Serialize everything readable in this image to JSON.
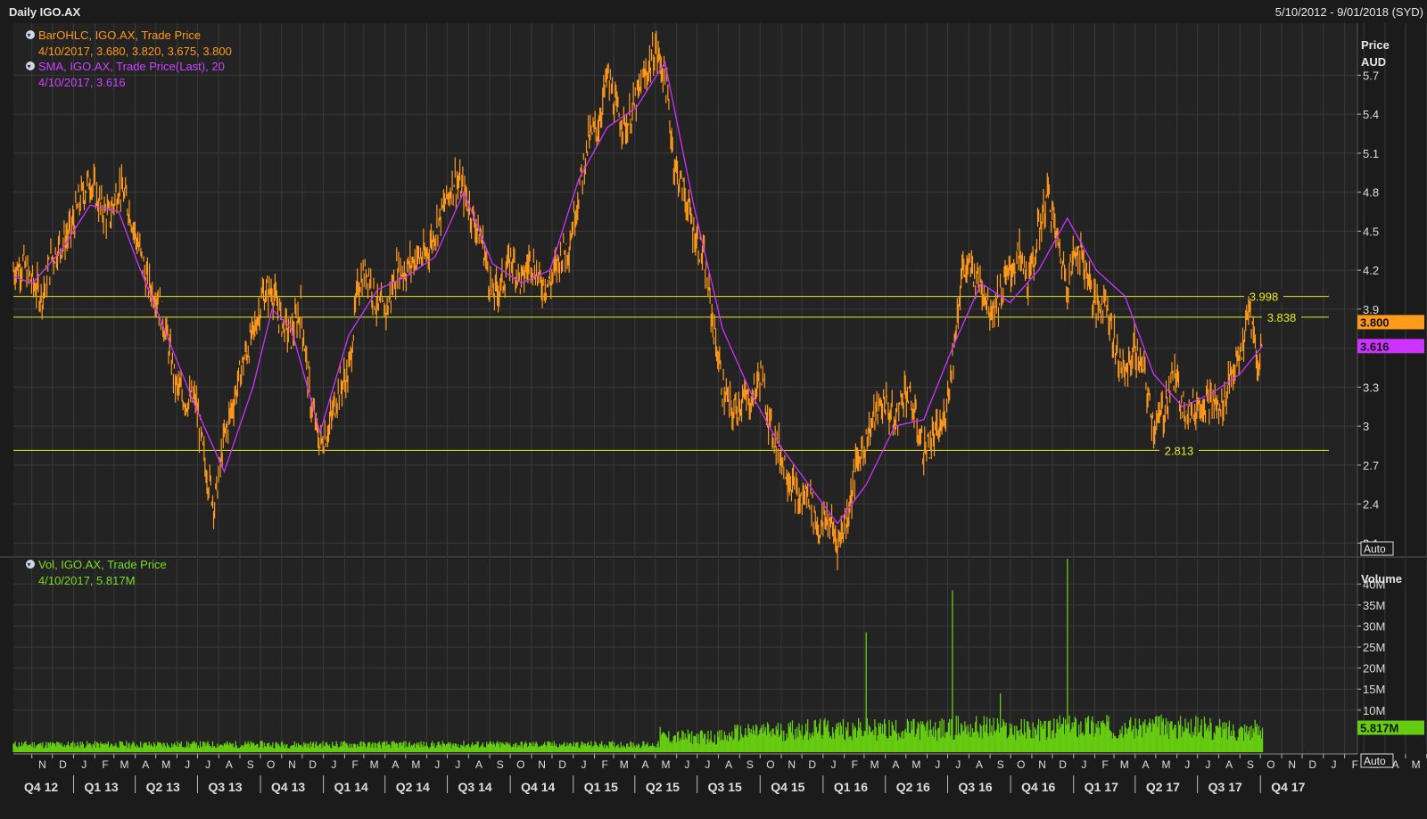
{
  "header": {
    "title": "Daily IGO.AX",
    "date_range": "5/10/2012 - 9/01/2018 (SYD)"
  },
  "price_panel": {
    "legend1_name": "BarOHLC, IGO.AX, Trade Price",
    "legend1_values": "4/10/2017, 3.680, 3.820, 3.675, 3.800",
    "legend2_name": "SMA, IGO.AX, Trade Price(Last),  20",
    "legend2_values": "4/10/2017, 3.616",
    "axis_title_1": "Price",
    "axis_title_2": "AUD",
    "last_price_label": "3.800",
    "sma_label": "3.616",
    "auto_button": "Auto"
  },
  "volume_panel": {
    "legend_name": "Vol, IGO.AX, Trade Price",
    "legend_values": "4/10/2017, 5.817M",
    "axis_title": "Volume",
    "last_volume_label": "5.817M",
    "auto_button": "Auto"
  },
  "colors": {
    "background": "#1b1b1b",
    "plot_bg": "#232323",
    "grid": "#3a3a3a",
    "price": "#ff9a1a",
    "sma": "#cc33ff",
    "volume": "#66cc11",
    "hline": "#e8e820",
    "axis_text": "#dddddd"
  },
  "chart_data": [
    {
      "type": "line",
      "title": "Daily IGO.AX",
      "series": [
        {
          "name": "BarOHLC, IGO.AX, Trade Price",
          "x": [
            "2012-10-05",
            "2012-10-19",
            "2012-11-02",
            "2012-11-16",
            "2012-11-30",
            "2012-12-14",
            "2012-12-28",
            "2013-01-11",
            "2013-01-25",
            "2013-02-08",
            "2013-02-22",
            "2013-03-08",
            "2013-03-22",
            "2013-04-05",
            "2013-04-19",
            "2013-05-03",
            "2013-05-17",
            "2013-05-31",
            "2013-06-14",
            "2013-06-28",
            "2013-07-12",
            "2013-07-26",
            "2013-08-09",
            "2013-08-23",
            "2013-09-06",
            "2013-09-20",
            "2013-10-04",
            "2013-10-18",
            "2013-11-01",
            "2013-11-15",
            "2013-11-29",
            "2013-12-13",
            "2013-12-27",
            "2014-01-10",
            "2014-01-24",
            "2014-02-07",
            "2014-02-21",
            "2014-03-07",
            "2014-03-21",
            "2014-04-04",
            "2014-04-18",
            "2014-05-02",
            "2014-05-16",
            "2014-05-30",
            "2014-06-13",
            "2014-06-27",
            "2014-07-11",
            "2014-07-25",
            "2014-08-08",
            "2014-08-22",
            "2014-09-05",
            "2014-09-19",
            "2014-10-03",
            "2014-10-17",
            "2014-10-31",
            "2014-11-14",
            "2014-11-28",
            "2014-12-12",
            "2014-12-26",
            "2015-01-09",
            "2015-01-23",
            "2015-02-06",
            "2015-02-20",
            "2015-03-06",
            "2015-03-20",
            "2015-04-03",
            "2015-04-17",
            "2015-05-01",
            "2015-05-15",
            "2015-05-29",
            "2015-06-12",
            "2015-06-26",
            "2015-07-10",
            "2015-07-24",
            "2015-08-07",
            "2015-08-21",
            "2015-09-04",
            "2015-09-18",
            "2015-10-02",
            "2015-10-16",
            "2015-10-30",
            "2015-11-13",
            "2015-11-27",
            "2015-12-11",
            "2015-12-25",
            "2016-01-08",
            "2016-01-22",
            "2016-02-05",
            "2016-02-19",
            "2016-03-04",
            "2016-03-18",
            "2016-04-01",
            "2016-04-15",
            "2016-04-29",
            "2016-05-13",
            "2016-05-27",
            "2016-06-10",
            "2016-06-24",
            "2016-07-08",
            "2016-07-22",
            "2016-08-05",
            "2016-08-19",
            "2016-09-02",
            "2016-09-16",
            "2016-09-30",
            "2016-10-14",
            "2016-10-28",
            "2016-11-11",
            "2016-11-25",
            "2016-12-09",
            "2016-12-23",
            "2017-01-06",
            "2017-01-20",
            "2017-02-03",
            "2017-02-17",
            "2017-03-03",
            "2017-03-17",
            "2017-03-31",
            "2017-04-14",
            "2017-04-28",
            "2017-05-12",
            "2017-05-26",
            "2017-06-09",
            "2017-06-23",
            "2017-07-07",
            "2017-07-21",
            "2017-08-04",
            "2017-08-18",
            "2017-09-01",
            "2017-09-15",
            "2017-09-29",
            "2017-10-04"
          ],
          "values": [
            4.2,
            4.25,
            4.1,
            4.0,
            4.3,
            4.4,
            4.5,
            4.75,
            4.9,
            4.7,
            4.6,
            4.85,
            4.7,
            4.4,
            4.1,
            4.0,
            3.7,
            3.3,
            3.2,
            3.2,
            2.7,
            2.4,
            2.9,
            3.2,
            3.5,
            3.7,
            4.0,
            4.05,
            3.8,
            3.7,
            3.9,
            3.2,
            2.85,
            3.0,
            3.3,
            3.4,
            4.1,
            4.2,
            3.9,
            3.9,
            4.2,
            4.2,
            4.3,
            4.3,
            4.5,
            4.7,
            4.9,
            4.8,
            4.6,
            4.4,
            4.0,
            4.1,
            4.3,
            4.1,
            4.3,
            4.1,
            4.1,
            4.3,
            4.4,
            4.8,
            5.2,
            5.3,
            5.7,
            5.4,
            5.3,
            5.5,
            5.7,
            5.9,
            5.7,
            5.0,
            4.8,
            4.5,
            4.3,
            3.8,
            3.3,
            3.1,
            3.2,
            3.2,
            3.4,
            3.0,
            2.8,
            2.6,
            2.4,
            2.5,
            2.2,
            2.3,
            2.1,
            2.3,
            2.7,
            2.9,
            3.1,
            3.2,
            3.0,
            3.3,
            3.1,
            2.8,
            2.9,
            3.0,
            3.5,
            4.2,
            4.2,
            4.1,
            3.9,
            4.0,
            4.2,
            4.3,
            4.1,
            4.5,
            4.8,
            4.4,
            4.1,
            4.4,
            4.2,
            3.9,
            4.0,
            3.6,
            3.4,
            3.6,
            3.4,
            3.0,
            3.1,
            3.4,
            3.2,
            3.1,
            3.2,
            3.2,
            3.1,
            3.4,
            3.5,
            3.9,
            3.4,
            3.8
          ]
        },
        {
          "name": "SMA, IGO.AX, Trade Price(Last),  20",
          "x": [
            "2012-10-05",
            "2012-11-02",
            "2012-12-14",
            "2013-01-25",
            "2013-03-08",
            "2013-04-05",
            "2013-05-17",
            "2013-06-28",
            "2013-08-09",
            "2013-09-20",
            "2013-10-18",
            "2013-11-15",
            "2013-12-27",
            "2014-02-07",
            "2014-03-21",
            "2014-05-02",
            "2014-06-13",
            "2014-07-25",
            "2014-09-05",
            "2014-10-17",
            "2014-11-28",
            "2015-01-09",
            "2015-02-20",
            "2015-04-03",
            "2015-05-15",
            "2015-06-26",
            "2015-08-07",
            "2015-09-18",
            "2015-10-30",
            "2015-12-11",
            "2016-01-22",
            "2016-03-04",
            "2016-04-15",
            "2016-05-27",
            "2016-07-08",
            "2016-08-19",
            "2016-09-30",
            "2016-11-11",
            "2016-12-23",
            "2017-02-03",
            "2017-03-17",
            "2017-04-28",
            "2017-06-09",
            "2017-07-21",
            "2017-09-01",
            "2017-10-04"
          ],
          "values": [
            4.15,
            4.1,
            4.35,
            4.7,
            4.65,
            4.25,
            3.7,
            3.15,
            2.65,
            3.3,
            3.9,
            3.75,
            2.95,
            3.7,
            4.05,
            4.15,
            4.3,
            4.8,
            4.25,
            4.1,
            4.2,
            4.9,
            5.3,
            5.45,
            5.8,
            4.7,
            3.75,
            3.25,
            2.85,
            2.55,
            2.25,
            2.55,
            3.0,
            3.05,
            3.6,
            4.1,
            3.95,
            4.2,
            4.6,
            4.2,
            4.0,
            3.4,
            3.15,
            3.25,
            3.4,
            3.616
          ]
        }
      ],
      "horizontal_lines": [
        3.998,
        3.838,
        2.813
      ],
      "ylabel": "Price AUD",
      "yticks": [
        2.1,
        2.4,
        2.7,
        3,
        3.3,
        3.6,
        3.9,
        4.2,
        4.5,
        4.8,
        5.1,
        5.4,
        5.7
      ],
      "ylim": [
        2.0,
        6.1
      ],
      "x_month_labels": [
        "N",
        "D",
        "J",
        "F",
        "M",
        "A",
        "M",
        "J",
        "J",
        "A",
        "S",
        "O",
        "N",
        "D",
        "J",
        "F",
        "M",
        "A",
        "M",
        "J",
        "J",
        "A",
        "S",
        "O",
        "N",
        "D",
        "J",
        "F",
        "M",
        "A",
        "M",
        "J",
        "J",
        "A",
        "S",
        "O",
        "N",
        "D",
        "J",
        "F",
        "M",
        "A",
        "M",
        "J",
        "J",
        "A",
        "S",
        "O",
        "N",
        "D",
        "J",
        "F",
        "M",
        "A",
        "M",
        "J",
        "J",
        "A",
        "S",
        "O",
        "N",
        "D",
        "J",
        "F",
        "M",
        "A",
        "M",
        "J",
        "J",
        "A",
        "S",
        "O",
        "N",
        "D",
        "J"
      ],
      "x_quarter_labels": [
        "Q4 12",
        "Q1 13",
        "Q2 13",
        "Q3 13",
        "Q4 13",
        "Q1 14",
        "Q2 14",
        "Q3 14",
        "Q4 14",
        "Q1 15",
        "Q2 15",
        "Q3 15",
        "Q4 15",
        "Q1 16",
        "Q2 16",
        "Q3 16",
        "Q4 16",
        "Q1 17",
        "Q2 17",
        "Q3 17",
        "Q4 17"
      ],
      "xlim": [
        "2012-10-05",
        "2018-01-09"
      ],
      "grid": true
    },
    {
      "type": "bar",
      "ylabel": "Volume",
      "yticks": [
        "10M",
        "15M",
        "20M",
        "25M",
        "30M",
        "35M",
        "40M"
      ],
      "ylim": [
        0,
        46
      ],
      "unit": "millions",
      "x": [
        "2012-10-05",
        "2013-01-11",
        "2013-03-22",
        "2013-06-28",
        "2013-09-20",
        "2013-12-27",
        "2014-03-21",
        "2014-06-27",
        "2014-09-19",
        "2014-12-26",
        "2015-03-20",
        "2015-05-08",
        "2015-05-29",
        "2015-08-21",
        "2015-09-18",
        "2015-11-13",
        "2016-01-22",
        "2016-03-04",
        "2016-03-18",
        "2016-06-10",
        "2016-07-08",
        "2016-07-22",
        "2016-09-16",
        "2016-10-28",
        "2016-12-09",
        "2016-12-23",
        "2017-01-20",
        "2017-03-17",
        "2017-05-12",
        "2017-07-21",
        "2017-09-15",
        "2017-10-04"
      ],
      "values": [
        2.0,
        2.5,
        2.0,
        2.0,
        2.0,
        2.0,
        2.0,
        2.0,
        2.0,
        2.0,
        2.0,
        6.0,
        4.0,
        5.0,
        5.5,
        6.0,
        6.0,
        28.5,
        6.0,
        6.0,
        38.5,
        6.5,
        14.0,
        6.0,
        7.0,
        46.0,
        7.0,
        7.0,
        8.0,
        7.0,
        6.0,
        5.817
      ]
    }
  ]
}
